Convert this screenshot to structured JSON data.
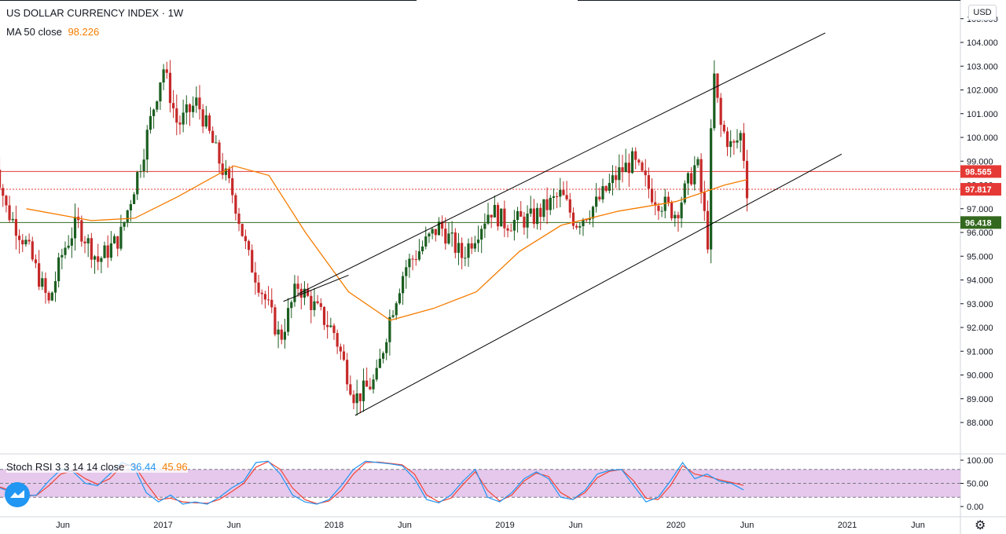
{
  "header": {
    "title": "US DOLLAR CURRENCY INDEX · 1W",
    "ma_label": "MA 50 close",
    "ma_value": "98.226",
    "currency_button": "USD"
  },
  "oscillator": {
    "label": "Stoch RSI 3 3 14 14 close",
    "k_value": "36.44",
    "d_value": "45.96",
    "k_color": "#2196f3",
    "d_color": "#f44336",
    "band_color": "#e1bee7",
    "upper_band": 80,
    "lower_band": 20,
    "ticks": [
      "100.00",
      "50.00",
      "0.00"
    ]
  },
  "price_levels": [
    {
      "label": "98.565",
      "value": 98.565,
      "color": "#e53935",
      "style": "solid"
    },
    {
      "label": "97.817",
      "value": 97.817,
      "color": "#e53935",
      "style": "dotted"
    },
    {
      "label": "96.418",
      "value": 96.418,
      "color": "#33691e",
      "style": "solid"
    }
  ],
  "colors": {
    "up": "#26a69a",
    "down": "#ef5350",
    "candle_up_body": "#1b5e20",
    "candle_down_body": "#c62828",
    "ma": "#f57c00",
    "trendline": "#000000"
  },
  "x_axis_labels": [
    "Jun",
    "2017",
    "Jun",
    "2018",
    "Jun",
    "2019",
    "Jun",
    "2020",
    "Jun",
    "2021",
    "Jun"
  ],
  "chart_data": {
    "type": "candlestick",
    "title": "US DOLLAR CURRENCY INDEX · 1W",
    "ylim": [
      86.6,
      105.2
    ],
    "y_ticks": [
      "88.000",
      "89.000",
      "90.000",
      "91.000",
      "92.000",
      "93.000",
      "94.000",
      "95.000",
      "96.000",
      "97.000",
      "98.000",
      "99.000",
      "100.000",
      "101.000",
      "102.000",
      "103.000",
      "104.000",
      "105.000"
    ],
    "x_ticks": [
      {
        "label": "Jun",
        "date": "2016-06-01"
      },
      {
        "label": "2017",
        "date": "2017-01-01"
      },
      {
        "label": "Jun",
        "date": "2017-06-01"
      },
      {
        "label": "2018",
        "date": "2018-01-01"
      },
      {
        "label": "Jun",
        "date": "2018-06-01"
      },
      {
        "label": "2019",
        "date": "2019-01-01"
      },
      {
        "label": "Jun",
        "date": "2019-06-01"
      },
      {
        "label": "2020",
        "date": "2020-01-01"
      },
      {
        "label": "Jun",
        "date": "2020-06-01"
      },
      {
        "label": "2021",
        "date": "2021-01-01"
      },
      {
        "label": "Jun",
        "date": "2021-06-01"
      }
    ],
    "price_path": [
      {
        "date": "2016-01-04",
        "close": 99.5
      },
      {
        "date": "2016-02-01",
        "close": 97.0
      },
      {
        "date": "2016-03-15",
        "close": 95.5
      },
      {
        "date": "2016-05-02",
        "close": 93.0
      },
      {
        "date": "2016-06-01",
        "close": 95.2
      },
      {
        "date": "2016-07-01",
        "close": 96.4
      },
      {
        "date": "2016-08-15",
        "close": 94.8
      },
      {
        "date": "2016-10-01",
        "close": 95.8
      },
      {
        "date": "2016-11-15",
        "close": 99.0
      },
      {
        "date": "2017-01-01",
        "close": 103.0
      },
      {
        "date": "2017-02-01",
        "close": 100.5
      },
      {
        "date": "2017-03-15",
        "close": 101.5
      },
      {
        "date": "2017-05-01",
        "close": 99.0
      },
      {
        "date": "2017-06-01",
        "close": 97.5
      },
      {
        "date": "2017-07-01",
        "close": 95.0
      },
      {
        "date": "2017-08-01",
        "close": 93.5
      },
      {
        "date": "2017-09-08",
        "close": 91.5
      },
      {
        "date": "2017-10-15",
        "close": 93.8
      },
      {
        "date": "2017-11-15",
        "close": 93.0
      },
      {
        "date": "2018-01-01",
        "close": 91.8
      },
      {
        "date": "2018-02-15",
        "close": 89.0
      },
      {
        "date": "2018-04-01",
        "close": 89.8
      },
      {
        "date": "2018-05-01",
        "close": 92.5
      },
      {
        "date": "2018-06-01",
        "close": 94.5
      },
      {
        "date": "2018-08-15",
        "close": 96.3
      },
      {
        "date": "2018-10-01",
        "close": 95.0
      },
      {
        "date": "2018-12-01",
        "close": 97.0
      },
      {
        "date": "2019-01-01",
        "close": 96.4
      },
      {
        "date": "2019-03-01",
        "close": 96.6
      },
      {
        "date": "2019-05-01",
        "close": 97.6
      },
      {
        "date": "2019-06-01",
        "close": 96.4
      },
      {
        "date": "2019-07-15",
        "close": 97.2
      },
      {
        "date": "2019-09-01",
        "close": 98.5
      },
      {
        "date": "2019-10-01",
        "close": 99.0
      },
      {
        "date": "2019-11-15",
        "close": 97.5
      },
      {
        "date": "2020-01-01",
        "close": 96.8
      },
      {
        "date": "2020-02-15",
        "close": 99.0
      },
      {
        "date": "2020-03-10",
        "close": 95.5
      },
      {
        "date": "2020-03-20",
        "close": 103.0
      },
      {
        "date": "2020-04-05",
        "close": 100.5
      },
      {
        "date": "2020-05-01",
        "close": 99.5
      },
      {
        "date": "2020-05-20",
        "close": 100.2
      },
      {
        "date": "2020-06-01",
        "close": 97.8
      }
    ],
    "ma_path": [
      {
        "date": "2016-03-15",
        "value": 97.0
      },
      {
        "date": "2016-08-01",
        "value": 96.5
      },
      {
        "date": "2016-11-01",
        "value": 96.6
      },
      {
        "date": "2017-02-01",
        "value": 97.5
      },
      {
        "date": "2017-04-15",
        "value": 98.3
      },
      {
        "date": "2017-06-01",
        "value": 98.8
      },
      {
        "date": "2017-08-15",
        "value": 98.4
      },
      {
        "date": "2017-11-01",
        "value": 96.0
      },
      {
        "date": "2018-02-01",
        "value": 93.5
      },
      {
        "date": "2018-05-01",
        "value": 92.3
      },
      {
        "date": "2018-08-01",
        "value": 92.8
      },
      {
        "date": "2018-11-01",
        "value": 93.5
      },
      {
        "date": "2019-02-01",
        "value": 95.2
      },
      {
        "date": "2019-05-01",
        "value": 96.3
      },
      {
        "date": "2019-09-01",
        "value": 96.9
      },
      {
        "date": "2020-01-01",
        "value": 97.3
      },
      {
        "date": "2020-04-15",
        "value": 98.0
      },
      {
        "date": "2020-06-01",
        "value": 98.226
      }
    ],
    "trendlines": [
      {
        "name": "upper-channel",
        "start": {
          "date": "2017-10-15",
          "value": 93.4
        },
        "end": {
          "date": "2020-11-15",
          "value": 104.4
        }
      },
      {
        "name": "lower-channel",
        "start": {
          "date": "2018-02-15",
          "value": 88.3
        },
        "end": {
          "date": "2020-12-20",
          "value": 99.3
        }
      },
      {
        "name": "inner-line",
        "start": {
          "date": "2017-09-15",
          "value": 93.1
        },
        "end": {
          "date": "2018-02-01",
          "value": 94.2
        }
      }
    ]
  },
  "stoch_data": {
    "k": [
      40,
      30,
      22,
      25,
      55,
      80,
      75,
      50,
      45,
      70,
      95,
      85,
      30,
      10,
      25,
      5,
      10,
      5,
      20,
      40,
      55,
      95,
      98,
      70,
      25,
      10,
      5,
      15,
      45,
      80,
      98,
      95,
      92,
      88,
      60,
      15,
      8,
      25,
      55,
      80,
      20,
      10,
      30,
      60,
      75,
      60,
      20,
      15,
      35,
      70,
      78,
      80,
      45,
      10,
      20,
      55,
      95,
      60,
      70,
      55,
      50,
      36
    ],
    "d": [
      42,
      33,
      25,
      24,
      45,
      70,
      78,
      60,
      48,
      60,
      88,
      90,
      50,
      15,
      18,
      10,
      8,
      7,
      15,
      32,
      50,
      85,
      97,
      80,
      40,
      15,
      6,
      12,
      35,
      70,
      95,
      96,
      93,
      90,
      70,
      25,
      10,
      18,
      48,
      75,
      35,
      12,
      25,
      55,
      72,
      65,
      30,
      15,
      30,
      62,
      76,
      80,
      55,
      18,
      15,
      45,
      88,
      70,
      65,
      58,
      52,
      46
    ]
  }
}
